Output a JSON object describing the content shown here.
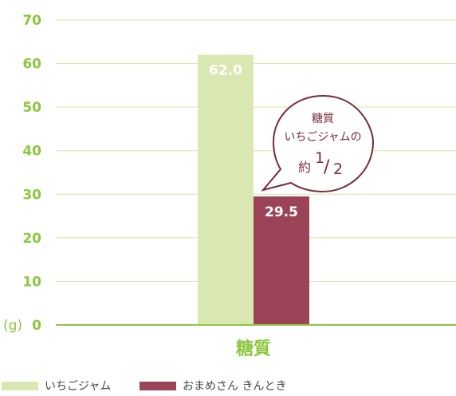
{
  "chart_data": {
    "type": "bar",
    "categories": [
      "糖質"
    ],
    "series": [
      {
        "name": "いちごジャム",
        "values": [
          62.0
        ],
        "value_labels": [
          "62.0"
        ],
        "color": "#d9e8b0"
      },
      {
        "name": "おまめさん きんとき",
        "values": [
          29.5
        ],
        "value_labels": [
          "29.5"
        ],
        "color": "#9b4458"
      }
    ],
    "ylim": [
      0,
      70
    ],
    "yticks": [
      0,
      10,
      20,
      30,
      40,
      50,
      60,
      70
    ],
    "ytick_labels": [
      "0",
      "10",
      "20",
      "30",
      "40",
      "50",
      "60",
      "70"
    ],
    "unit_label": "(g)",
    "grid": true,
    "legend_position": "bottom-left",
    "annotation": {
      "line1": "糖質",
      "line2": "いちごジャムの",
      "prefix": "約",
      "numerator": "1",
      "slash": "/",
      "denominator": "2"
    },
    "colors": {
      "axis_text": "#8dc63f",
      "grid": "#d6e6a8",
      "baseline": "#8dc63f",
      "bubble_border": "#7a2a3a"
    }
  }
}
